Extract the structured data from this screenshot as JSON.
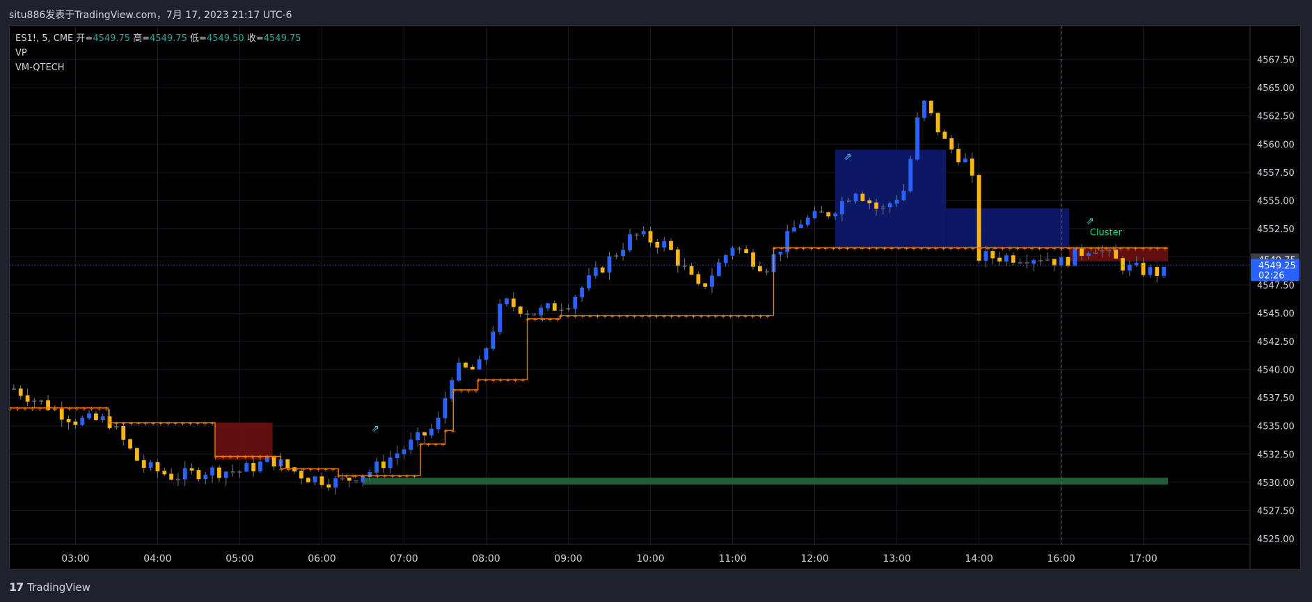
{
  "header": {
    "title": "situ886发表于TradingView.com，7月 17, 2023 21:17 UTC-6"
  },
  "legend": {
    "symbol": "ES1!, 5, CME",
    "open_label": "开=",
    "open": "4549.75",
    "high_label": "高=",
    "high": "4549.75",
    "low_label": "低=",
    "low": "4549.50",
    "close_label": "收=",
    "close": "4549.75",
    "indicator1": "VP",
    "indicator2": "VM-QTECH"
  },
  "footer": {
    "brand_logo": "17",
    "brand_name": "TradingView"
  },
  "colors": {
    "up_bar": "#2962ff",
    "down_bar": "#f9b70f",
    "neutral_bar": "#787b86",
    "stepline": "#f57c00",
    "cluster_upper": "#0d1b6e",
    "cluster_lower": "#6b1010",
    "support_zone": "#1e5e36",
    "signal_arrow": "#4dd0e1",
    "cluster_text": "#00e676"
  },
  "chart_data": {
    "type": "candlestick",
    "title": "",
    "xlabel": "",
    "ylabel": "",
    "ylim": [
      4524.5,
      4570.5
    ],
    "xlim": [
      2.2,
      17.3
    ],
    "grid": true,
    "y_ticks": [
      "4567.50",
      "4565.00",
      "4562.50",
      "4560.00",
      "4557.50",
      "4555.00",
      "4552.50",
      "4550.00",
      "4547.50",
      "4545.00",
      "4542.50",
      "4540.00",
      "4537.50",
      "4535.00",
      "4532.50",
      "4530.00",
      "4527.50",
      "4525.00"
    ],
    "y_tick_values": [
      4567.5,
      4565,
      4562.5,
      4560,
      4557.5,
      4555,
      4552.5,
      4550,
      4547.5,
      4545,
      4542.5,
      4540,
      4537.5,
      4535,
      4532.5,
      4530,
      4527.5,
      4525
    ],
    "x_ticks": [
      "03:00",
      "04:00",
      "05:00",
      "06:00",
      "07:00",
      "08:00",
      "09:00",
      "10:00",
      "11:00",
      "12:00",
      "13:00",
      "14:00",
      "16:00",
      "17:00"
    ],
    "x_tick_values": [
      3,
      4,
      5,
      6,
      7,
      8,
      9,
      10,
      11,
      12,
      13,
      14,
      15,
      16
    ],
    "price_labels": [
      {
        "text": "4549.75",
        "value": 4549.75
      },
      {
        "text": "4549.25",
        "value": 4549.25
      },
      {
        "text": "02:26",
        "value": 4548.4
      }
    ],
    "current_price": 4549.25,
    "stepline": [
      [
        2.2,
        4536.6
      ],
      [
        3.4,
        4536.6
      ],
      [
        3.4,
        4535.3
      ],
      [
        4.7,
        4535.3
      ],
      [
        4.7,
        4532.3
      ],
      [
        5.5,
        4532.3
      ],
      [
        5.5,
        4531.2
      ],
      [
        6.2,
        4531.2
      ],
      [
        6.2,
        4530.6
      ],
      [
        6.4,
        4530.6
      ],
      [
        6.4,
        4530.6
      ],
      [
        7.2,
        4530.6
      ],
      [
        7.2,
        4533.4
      ],
      [
        7.5,
        4533.4
      ],
      [
        7.5,
        4534.6
      ],
      [
        7.6,
        4534.6
      ],
      [
        7.6,
        4538.2
      ],
      [
        7.9,
        4538.2
      ],
      [
        7.9,
        4539.1
      ],
      [
        8.5,
        4539.1
      ],
      [
        8.5,
        4544.5
      ],
      [
        8.9,
        4544.5
      ],
      [
        8.9,
        4544.8
      ],
      [
        11.5,
        4544.8
      ],
      [
        11.5,
        4550.8
      ],
      [
        12.3,
        4550.8
      ],
      [
        12.3,
        4550.8
      ],
      [
        16.3,
        4550.8
      ]
    ],
    "cluster_zones": [
      {
        "x0": 4.7,
        "x1": 5.4,
        "top": 4535.3,
        "bottom": 4532.0,
        "kind": "lower"
      },
      {
        "x0": 12.25,
        "x1": 13.6,
        "top": 4559.5,
        "bottom": 4550.8,
        "kind": "upper"
      },
      {
        "x0": 13.6,
        "x1": 15.1,
        "top": 4554.3,
        "bottom": 4550.8,
        "kind": "upper"
      },
      {
        "x0": 15.1,
        "x1": 16.3,
        "top": 4550.8,
        "bottom": 4549.6,
        "kind": "lower"
      }
    ],
    "support_zone": {
      "x0": 6.5,
      "x1": 16.3,
      "top": 4530.4,
      "bottom": 4529.8
    },
    "signals": [
      {
        "x": 6.6,
        "y": 4534.5,
        "label": "⇗"
      },
      {
        "x": 12.35,
        "y": 4558.6,
        "label": "⇗"
      },
      {
        "x": 15.3,
        "y": 4552.9,
        "label": "⇗"
      }
    ],
    "annotations": [
      {
        "text": "Cluster",
        "x": 15.35,
        "y": 4551.9
      }
    ],
    "candles": []
  }
}
